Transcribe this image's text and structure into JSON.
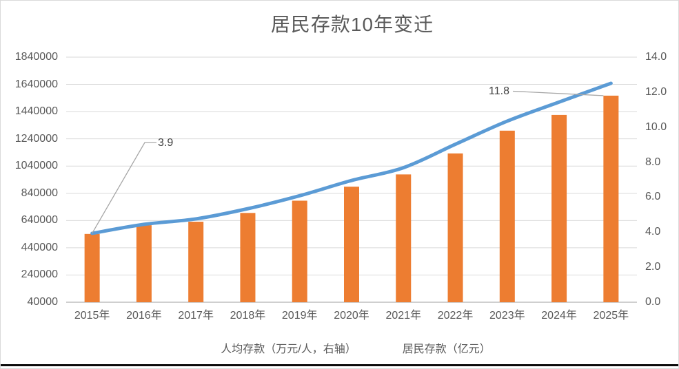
{
  "chart_data": {
    "type": "combo",
    "title": "居民存款10年变迁",
    "categories": [
      "2015年",
      "2016年",
      "2017年",
      "2018年",
      "2019年",
      "2020年",
      "2021年",
      "2022年",
      "2023年",
      "2024年",
      "2025年"
    ],
    "series": [
      {
        "name": "人均存款（万元/人，右轴）",
        "type": "bar",
        "axis": "right",
        "color": "#ED7D31",
        "values": [
          3.9,
          4.4,
          4.6,
          5.1,
          5.8,
          6.6,
          7.3,
          8.5,
          9.8,
          10.7,
          11.8
        ]
      },
      {
        "name": "居民存款（亿元）",
        "type": "line",
        "axis": "left",
        "color": "#5B9BD5",
        "values": [
          546000,
          612000,
          652000,
          727000,
          822000,
          934000,
          1028000,
          1200000,
          1370000,
          1510000,
          1648000
        ]
      }
    ],
    "left_axis": {
      "min": 40000,
      "max": 1840000,
      "step": 200000,
      "tick_labels": [
        "1840000",
        "1640000",
        "1440000",
        "1240000",
        "1040000",
        "840000",
        "640000",
        "440000",
        "240000",
        "40000"
      ]
    },
    "right_axis": {
      "min": 0.0,
      "max": 14.0,
      "step": 2.0,
      "tick_labels": [
        "14.0",
        "12.0",
        "10.0",
        "8.0",
        "6.0",
        "4.0",
        "2.0",
        "0.0"
      ]
    },
    "annotations": [
      {
        "text": "3.9",
        "category": "2015年",
        "series": "人均存款（万元/人，右轴）"
      },
      {
        "text": "11.8",
        "category": "2025年",
        "series": "人均存款（万元/人，右轴）"
      }
    ],
    "legend_position": "bottom",
    "grid": true,
    "grid_color": "#D9D9D9",
    "axis_line_color": "#BFBFBF",
    "text_color": "#595959",
    "annotation_text_color": "#404040",
    "leader_line_color": "#A6A6A6"
  }
}
